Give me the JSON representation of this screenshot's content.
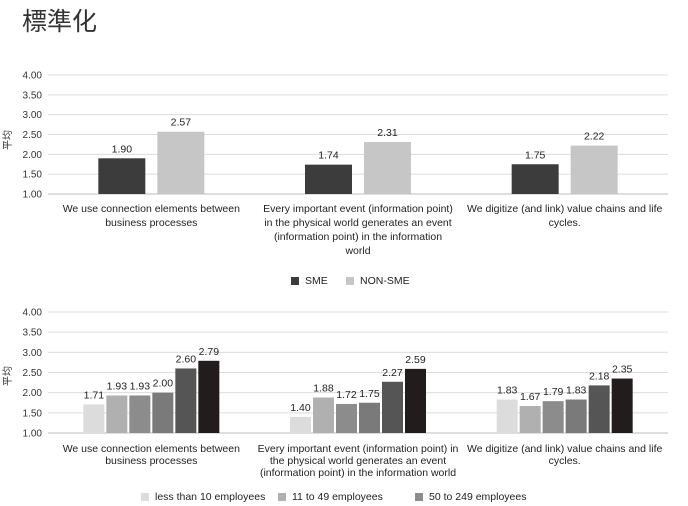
{
  "page": {
    "title": "標準化"
  },
  "chart_data": [
    {
      "type": "bar",
      "title": "",
      "ylabel": "平均",
      "ylim": [
        1.0,
        4.0
      ],
      "yticks": [
        "1.00",
        "1.50",
        "2.00",
        "2.50",
        "3.00",
        "3.50",
        "4.00"
      ],
      "legend_position": "bottom",
      "categories": [
        [
          "We use connection elements between",
          "business processes"
        ],
        [
          "Every important event (information point)",
          "in the physical world generates an event",
          "(information point) in the information",
          "world"
        ],
        [
          "We digitize (and link) value chains and life",
          "cycles."
        ]
      ],
      "series": [
        {
          "name": "SME",
          "color": "#3c3c3c",
          "values": [
            1.9,
            1.74,
            1.75
          ],
          "labels": [
            "1.90",
            "1.74",
            "1.75"
          ]
        },
        {
          "name": "NON-SME",
          "color": "#c6c6c6",
          "values": [
            2.57,
            2.31,
            2.22
          ],
          "labels": [
            "2.57",
            "2.31",
            "2.22"
          ]
        }
      ]
    },
    {
      "type": "bar",
      "title": "",
      "ylabel": "平均",
      "ylim": [
        1.0,
        4.0
      ],
      "yticks": [
        "1.00",
        "1.50",
        "2.00",
        "2.50",
        "3.00",
        "3.50",
        "4.00"
      ],
      "legend_position": "bottom",
      "categories": [
        [
          "We use connection elements between",
          "business processes"
        ],
        [
          "Every important event (information point) in",
          "the physical world generates an event",
          "(information point) in the information world"
        ],
        [
          "We digitize (and link) value chains and life",
          "cycles."
        ]
      ],
      "series": [
        {
          "name": "less than 10 employees",
          "color": "#dcdcdc",
          "values": [
            1.71,
            1.4,
            1.83
          ],
          "labels": [
            "1.71",
            "1.40",
            "1.83"
          ]
        },
        {
          "name": "11 to 49 employees",
          "color": "#b0b0b0",
          "values": [
            1.93,
            1.88,
            1.67
          ],
          "labels": [
            "1.93",
            "1.88",
            "1.67"
          ]
        },
        {
          "name": "50 to 249 employees",
          "color": "#8c8c8c",
          "values": [
            1.93,
            1.72,
            1.79
          ],
          "labels": [
            "1.93",
            "1.72",
            "1.79"
          ]
        },
        {
          "name": "",
          "color": "#7a7a7a",
          "values": [
            2.0,
            1.75,
            1.83
          ],
          "labels": [
            "2.00",
            "1.75",
            "1.83"
          ]
        },
        {
          "name": "",
          "color": "#555555",
          "values": [
            2.6,
            2.27,
            2.18
          ],
          "labels": [
            "2.60",
            "2.27",
            "2.18"
          ]
        },
        {
          "name": "",
          "color": "#231c1c",
          "values": [
            2.79,
            2.59,
            2.35
          ],
          "labels": [
            "2.79",
            "2.59",
            "2.35"
          ]
        }
      ]
    }
  ]
}
